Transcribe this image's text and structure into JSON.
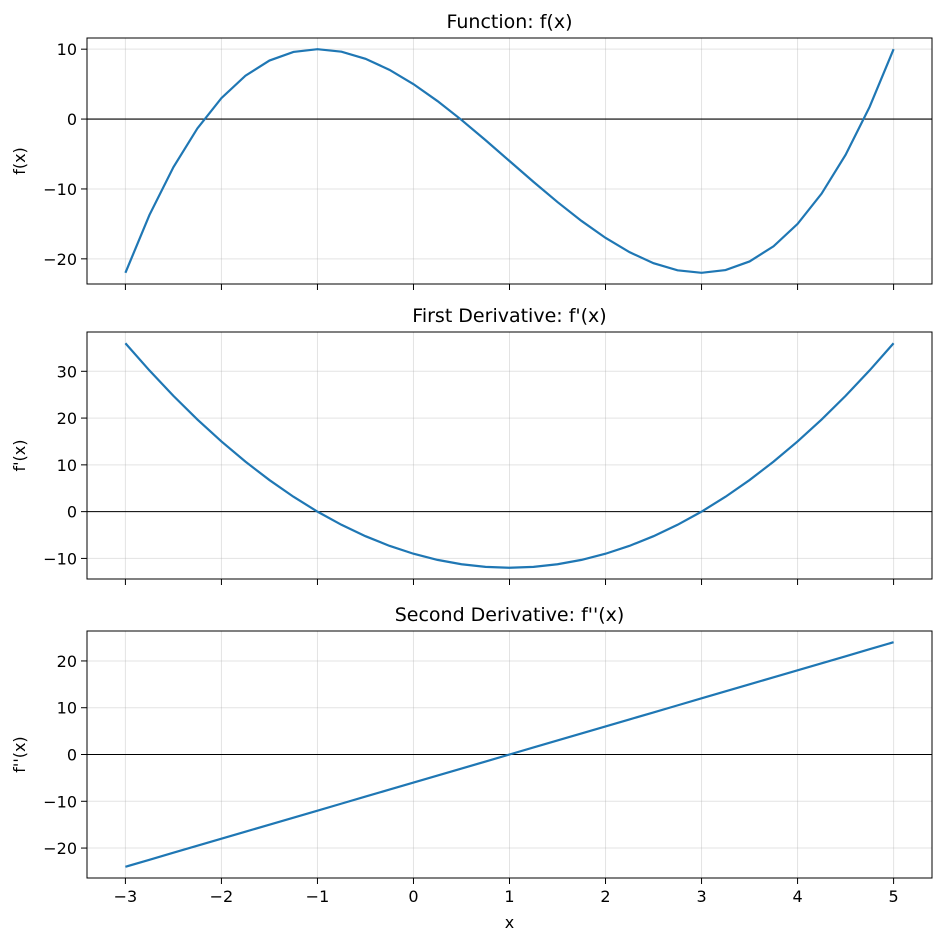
{
  "chart_data": [
    {
      "type": "line",
      "title": "Function: f(x)",
      "ylabel": "f(x)",
      "color": "#1f77b4",
      "grid": true,
      "zero_line": true,
      "x": [
        -3,
        -2.75,
        -2.5,
        -2.25,
        -2,
        -1.75,
        -1.5,
        -1.25,
        -1,
        -0.75,
        -0.5,
        -0.25,
        0,
        0.25,
        0.5,
        0.75,
        1,
        1.25,
        1.5,
        1.75,
        2,
        2.25,
        2.5,
        2.75,
        3,
        3.25,
        3.5,
        3.75,
        4,
        4.25,
        4.5,
        4.75,
        5
      ],
      "values": [
        -22,
        -13.734375,
        -6.875,
        -1.328125,
        3,
        6.203125,
        8.375,
        9.609375,
        10,
        9.640625,
        8.625,
        7.046875,
        5,
        2.578125,
        -0.125,
        -3.015625,
        -6,
        -8.984375,
        -11.875,
        -14.578125,
        -17,
        -19.046875,
        -20.625,
        -21.640625,
        -22,
        -21.609375,
        -20.375,
        -18.203125,
        -15,
        -10.671875,
        -5.125,
        1.734375,
        10
      ],
      "xlim": [
        -3.4,
        5.4
      ],
      "xticks": [
        -3,
        -2,
        -1,
        0,
        1,
        2,
        3,
        4,
        5
      ],
      "ylim": [
        -23.6,
        11.6
      ],
      "yticks": [
        {
          "value": -20,
          "label": "−20"
        },
        {
          "value": -10,
          "label": "−10"
        },
        0,
        10
      ]
    },
    {
      "type": "line",
      "title": "First Derivative: f'(x)",
      "ylabel": "f'(x)",
      "color": "#1f77b4",
      "grid": true,
      "zero_line": true,
      "x": [
        -3,
        -2.75,
        -2.5,
        -2.25,
        -2,
        -1.75,
        -1.5,
        -1.25,
        -1,
        -0.75,
        -0.5,
        -0.25,
        0,
        0.25,
        0.5,
        0.75,
        1,
        1.25,
        1.5,
        1.75,
        2,
        2.25,
        2.5,
        2.75,
        3,
        3.25,
        3.5,
        3.75,
        4,
        4.25,
        4.5,
        4.75,
        5
      ],
      "values": [
        36,
        30.1875,
        24.75,
        19.6875,
        15,
        10.6875,
        6.75,
        3.1875,
        0,
        -2.8125,
        -5.25,
        -7.3125,
        -9,
        -10.3125,
        -11.25,
        -11.8125,
        -12,
        -11.8125,
        -11.25,
        -10.3125,
        -9,
        -7.3125,
        -5.25,
        -2.8125,
        0,
        3.1875,
        6.75,
        10.6875,
        15,
        19.6875,
        24.75,
        30.1875,
        36
      ],
      "xlim": [
        -3.4,
        5.4
      ],
      "xticks": [
        -3,
        -2,
        -1,
        0,
        1,
        2,
        3,
        4,
        5
      ],
      "ylim": [
        -14.4,
        38.4
      ],
      "yticks": [
        {
          "value": -10,
          "label": "−10"
        },
        0,
        10,
        20,
        30
      ]
    },
    {
      "type": "line",
      "title": "Second Derivative: f''(x)",
      "ylabel": "f''(x)",
      "xlabel": "x",
      "color": "#1f77b4",
      "grid": true,
      "zero_line": true,
      "x": [
        -3,
        -2.75,
        -2.5,
        -2.25,
        -2,
        -1.75,
        -1.5,
        -1.25,
        -1,
        -0.75,
        -0.5,
        -0.25,
        0,
        0.25,
        0.5,
        0.75,
        1,
        1.25,
        1.5,
        1.75,
        2,
        2.25,
        2.5,
        2.75,
        3,
        3.25,
        3.5,
        3.75,
        4,
        4.25,
        4.5,
        4.75,
        5
      ],
      "values": [
        -24,
        -22.5,
        -21,
        -19.5,
        -18,
        -16.5,
        -15,
        -13.5,
        -12,
        -10.5,
        -9,
        -7.5,
        -6,
        -4.5,
        -3,
        -1.5,
        0,
        1.5,
        3,
        4.5,
        6,
        7.5,
        9,
        10.5,
        12,
        13.5,
        15,
        16.5,
        18,
        19.5,
        21,
        22.5,
        24
      ],
      "xlim": [
        -3.4,
        5.4
      ],
      "xticks": [
        {
          "value": -3,
          "label": "−3"
        },
        {
          "value": -2,
          "label": "−2"
        },
        {
          "value": -1,
          "label": "−1"
        },
        0,
        1,
        2,
        3,
        4,
        5
      ],
      "ylim": [
        -26.4,
        26.4
      ],
      "yticks": [
        {
          "value": -20,
          "label": "−20"
        },
        {
          "value": -10,
          "label": "−10"
        },
        0,
        10,
        20
      ]
    }
  ]
}
